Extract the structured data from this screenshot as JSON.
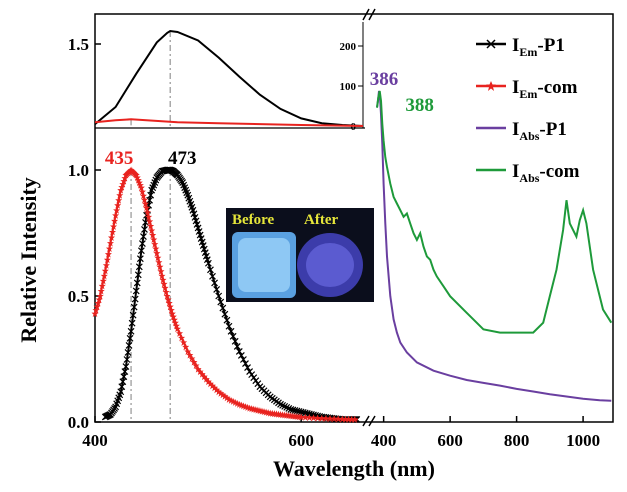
{
  "chart_data": [
    {
      "type": "line",
      "panel": "emission",
      "xlabel": "Wavelength (nm)",
      "ylabel": "Relative Intensity",
      "xlim": [
        400,
        660
      ],
      "ylim": [
        0,
        1.1
      ],
      "x_ticks": [
        400,
        600
      ],
      "y_ticks": [
        "0.0",
        "0.5",
        "1.0"
      ],
      "series": [
        {
          "name": "I_Em-P1",
          "color": "#000000",
          "marker": "x",
          "x": [
            410,
            415,
            420,
            425,
            430,
            435,
            440,
            445,
            450,
            455,
            460,
            465,
            470,
            473,
            476,
            480,
            485,
            490,
            495,
            500,
            505,
            510,
            520,
            530,
            540,
            550,
            560,
            570,
            580,
            590,
            600,
            610,
            620,
            630,
            640,
            650,
            655
          ],
          "y": [
            0.02,
            0.03,
            0.06,
            0.12,
            0.22,
            0.36,
            0.52,
            0.68,
            0.82,
            0.92,
            0.97,
            0.995,
            1.0,
            1.0,
            0.995,
            0.98,
            0.95,
            0.9,
            0.84,
            0.77,
            0.7,
            0.63,
            0.5,
            0.38,
            0.28,
            0.2,
            0.14,
            0.1,
            0.07,
            0.05,
            0.04,
            0.03,
            0.02,
            0.015,
            0.01,
            0.01,
            0.01
          ]
        },
        {
          "name": "I_Em-com",
          "color": "#e8231f",
          "marker": "star",
          "x": [
            400,
            405,
            410,
            415,
            420,
            425,
            430,
            435,
            440,
            445,
            450,
            455,
            460,
            465,
            470,
            475,
            480,
            490,
            500,
            510,
            520,
            530,
            540,
            550,
            560,
            570,
            580,
            590,
            600,
            620,
            640,
            655
          ],
          "y": [
            0.43,
            0.5,
            0.6,
            0.71,
            0.82,
            0.92,
            0.98,
            1.0,
            0.98,
            0.93,
            0.85,
            0.76,
            0.67,
            0.58,
            0.5,
            0.43,
            0.37,
            0.28,
            0.21,
            0.16,
            0.12,
            0.09,
            0.07,
            0.055,
            0.045,
            0.035,
            0.03,
            0.025,
            0.02,
            0.015,
            0.012,
            0.01
          ]
        }
      ],
      "annotations": [
        {
          "text": "435",
          "x": 435,
          "color": "#e8231f"
        },
        {
          "text": "473",
          "x": 473,
          "color": "#000000"
        }
      ]
    },
    {
      "type": "line",
      "panel": "absorption",
      "xlim": [
        380,
        1090
      ],
      "x_ticks": [
        400,
        600,
        800,
        1000
      ],
      "series": [
        {
          "name": "I_Abs-P1",
          "color": "#6a3fa0",
          "x": [
            380,
            383,
            386,
            389,
            392,
            396,
            400,
            405,
            410,
            420,
            430,
            440,
            450,
            470,
            500,
            550,
            600,
            650,
            700,
            750,
            800,
            850,
            900,
            950,
            1000,
            1050,
            1085
          ],
          "y": [
            0.95,
            0.97,
            1.0,
            0.98,
            0.93,
            0.84,
            0.72,
            0.6,
            0.5,
            0.38,
            0.31,
            0.27,
            0.24,
            0.21,
            0.18,
            0.155,
            0.14,
            0.127,
            0.118,
            0.11,
            0.1,
            0.092,
            0.084,
            0.077,
            0.07,
            0.066,
            0.064
          ]
        },
        {
          "name": "I_Abs-com",
          "color": "#1e9a3a",
          "x": [
            380,
            384,
            388,
            392,
            396,
            400,
            405,
            410,
            420,
            430,
            440,
            450,
            460,
            470,
            480,
            490,
            500,
            510,
            520,
            530,
            540,
            550,
            560,
            580,
            600,
            650,
            700,
            750,
            800,
            850,
            880,
            900,
            920,
            940,
            950,
            960,
            980,
            990,
            1000,
            1010,
            1030,
            1060,
            1085
          ],
          "y": [
            0.95,
            0.98,
            1.0,
            0.97,
            0.9,
            0.85,
            0.8,
            0.77,
            0.72,
            0.68,
            0.66,
            0.64,
            0.62,
            0.63,
            0.6,
            0.57,
            0.55,
            0.57,
            0.53,
            0.5,
            0.49,
            0.46,
            0.44,
            0.41,
            0.38,
            0.33,
            0.28,
            0.27,
            0.27,
            0.27,
            0.3,
            0.38,
            0.46,
            0.58,
            0.67,
            0.6,
            0.56,
            0.61,
            0.64,
            0.6,
            0.46,
            0.34,
            0.3
          ]
        }
      ],
      "annotations": [
        {
          "text": "386",
          "x": 386,
          "color": "#6a3fa0"
        },
        {
          "text": "388",
          "x": 388,
          "color": "#1e9a3a"
        }
      ]
    },
    {
      "type": "line",
      "panel": "absorption-inset",
      "y_ticks": [
        "200",
        "100",
        "0"
      ],
      "series": [
        {
          "name": "I_Em-P1 (inset)",
          "color": "#000000",
          "x": [
            400,
            420,
            440,
            460,
            470,
            473,
            480,
            500,
            520,
            540,
            560,
            580,
            600,
            620,
            640,
            660
          ],
          "y": [
            0.02,
            0.2,
            0.55,
            0.88,
            0.98,
            1.0,
            0.99,
            0.9,
            0.72,
            0.52,
            0.33,
            0.18,
            0.08,
            0.03,
            0.01,
            0.0
          ]
        },
        {
          "name": "I_Em-com (inset)",
          "color": "#e8231f",
          "x": [
            400,
            420,
            435,
            450,
            480,
            520,
            560,
            600,
            660
          ],
          "y": [
            0.04,
            0.06,
            0.07,
            0.06,
            0.04,
            0.03,
            0.02,
            0.01,
            0.0
          ]
        }
      ]
    }
  ],
  "legend": [
    {
      "main": "I",
      "sub": "Em",
      "suffix": "-P1",
      "color": "#000000",
      "marker": "x"
    },
    {
      "main": "I",
      "sub": "Em",
      "suffix": "-com",
      "color": "#e8231f",
      "marker": "star"
    },
    {
      "main": "I",
      "sub": "Abs",
      "suffix": "-P1",
      "color": "#6a3fa0",
      "marker": ""
    },
    {
      "main": "I",
      "sub": "Abs",
      "suffix": "-com",
      "color": "#1e9a3a",
      "marker": ""
    }
  ],
  "inset_tick_labels": {
    "inset_left": [
      "1.5"
    ]
  },
  "photo": {
    "before_label": "Before",
    "after_label": "After"
  }
}
